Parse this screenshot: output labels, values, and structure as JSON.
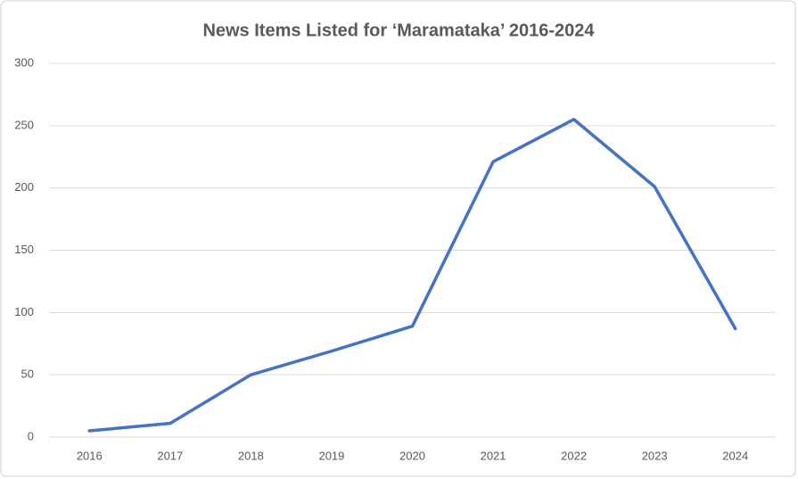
{
  "chart_data": {
    "type": "line",
    "title": "News Items Listed for ‘Maramataka’ 2016-2024",
    "categories": [
      "2016",
      "2017",
      "2018",
      "2019",
      "2020",
      "2021",
      "2022",
      "2023",
      "2024"
    ],
    "values": [
      5,
      11,
      50,
      69,
      89,
      221,
      255,
      201,
      87
    ],
    "color": "#4472c4",
    "ylim": [
      0,
      300
    ],
    "yticks": [
      0,
      50,
      100,
      150,
      200,
      250,
      300
    ],
    "grid": true
  }
}
